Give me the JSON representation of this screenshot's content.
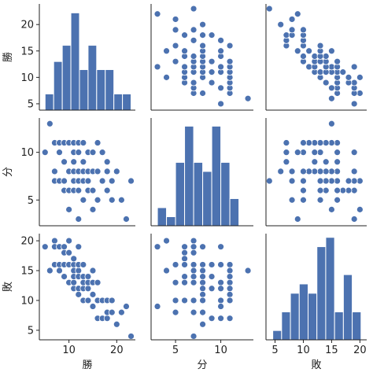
{
  "chart_data": {
    "type": "pairplot",
    "color": "#4c72b0",
    "variables": [
      {
        "name": "勝",
        "lim": [
          3.8,
          23.9
        ],
        "xticks": [
          10,
          20
        ],
        "yticks": [
          5,
          10,
          15,
          20
        ],
        "values": [
          5,
          6,
          7,
          7,
          7,
          8,
          8,
          8,
          9,
          9,
          9,
          9,
          10,
          10,
          10,
          10,
          11,
          11,
          11,
          11,
          11,
          11,
          12,
          12,
          12,
          12,
          12,
          12,
          13,
          13,
          13,
          13,
          13,
          14,
          14,
          14,
          14,
          15,
          15,
          15,
          15,
          16,
          16,
          16,
          17,
          17,
          18,
          18,
          18,
          19,
          19,
          20,
          21,
          22,
          23
        ],
        "hist": {
          "bins": [
            5,
            6.8,
            8.6,
            10.4,
            12.2,
            14,
            15.8,
            17.6,
            19.4,
            21.2,
            23
          ],
          "counts": [
            2,
            6,
            8,
            12,
            5,
            8,
            5,
            5,
            2,
            2
          ],
          "ylim": [
            0,
            13.1
          ]
        }
      },
      {
        "name": "分",
        "lim": [
          2.3,
          13.6
        ],
        "xticks": [
          5,
          10
        ],
        "yticks": [
          5,
          10
        ],
        "values": [
          10,
          13,
          7,
          11,
          8,
          10,
          7,
          11,
          11,
          6,
          9,
          7,
          8,
          11,
          6,
          4,
          11,
          7,
          8,
          6,
          10,
          9,
          3,
          7,
          11,
          8,
          6,
          10,
          7,
          9,
          5,
          8,
          11,
          10,
          6,
          8,
          7,
          10,
          4,
          8,
          6,
          8,
          11,
          5,
          7,
          10,
          6,
          9,
          8,
          5,
          7,
          8,
          5,
          3,
          7
        ],
        "hist": {
          "bins": [
            3,
            4,
            5,
            6,
            7,
            8,
            9,
            10,
            11,
            12
          ],
          "counts": [
            2,
            1,
            7,
            11,
            7,
            6,
            11,
            7,
            3
          ],
          "ylim": [
            0,
            11.9
          ]
        }
      },
      {
        "name": "敗",
        "lim": [
          3.4,
          21.2
        ],
        "xticks": [
          5,
          10,
          15,
          20
        ],
        "yticks": [
          5,
          10,
          15,
          20
        ],
        "values": [
          19,
          15,
          20,
          16,
          19,
          16,
          19,
          15,
          14,
          19,
          16,
          18,
          16,
          13,
          18,
          20,
          12,
          16,
          15,
          17,
          13,
          14,
          19,
          15,
          11,
          14,
          16,
          12,
          14,
          12,
          16,
          13,
          10,
          10,
          14,
          12,
          13,
          9,
          15,
          11,
          13,
          10,
          7,
          13,
          10,
          7,
          10,
          7,
          8,
          10,
          8,
          6,
          8,
          9,
          4
        ],
        "hist": {
          "bins": [
            4.6,
            6.16,
            7.72,
            9.28,
            10.84,
            12.4,
            13.96,
            15.52,
            17.08,
            18.64,
            20.2
          ],
          "counts": [
            1,
            3,
            5,
            6,
            5,
            10,
            11,
            3,
            7,
            3
          ],
          "ylim": [
            0,
            11.4
          ]
        }
      }
    ]
  }
}
